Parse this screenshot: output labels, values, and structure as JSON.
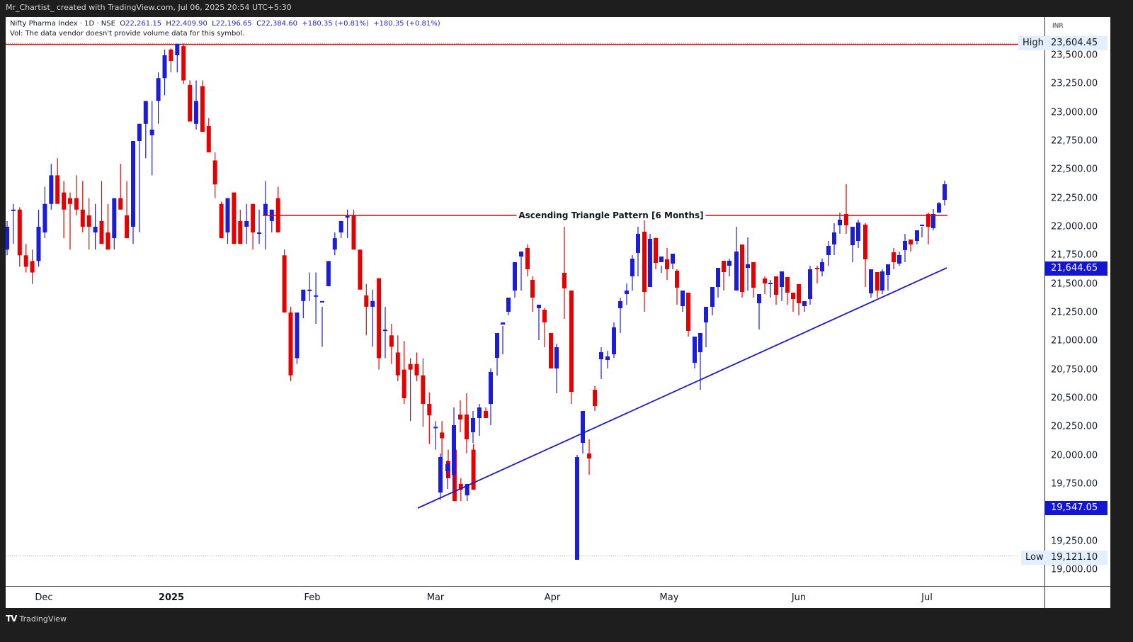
{
  "header": {
    "credit": "Mr_Chartist_ created with TradingView.com, Jul 06, 2025 20:54 UTC+5:30"
  },
  "legend": {
    "symbol": "Nifty Pharma Index · 1D · NSE",
    "open_label": "O",
    "open": "22,261.15",
    "high_label": "H",
    "high": "22,409.90",
    "low_label": "L",
    "low": "22,196.65",
    "close_label": "C",
    "close": "22,384.60",
    "change1": "+180.35 (+0.81%)",
    "change2": "+180.35 (+0.81%)",
    "vol_note": "Vol: The data vendor doesn't provide volume data for this symbol."
  },
  "price_axis": {
    "currency": "INR",
    "ticks": [
      "23,500.00",
      "23,250.00",
      "23,000.00",
      "22,750.00",
      "22,500.00",
      "22,250.00",
      "22,000.00",
      "21,750.00",
      "21,500.00",
      "21,250.00",
      "21,000.00",
      "20,750.00",
      "20,500.00",
      "20,250.00",
      "20,000.00",
      "19,750.00",
      "19,250.00",
      "19,000.00"
    ],
    "high_tag": "High",
    "high_value": "23,604.45",
    "low_tag": "Low",
    "low_value": "19,121.10",
    "marker1": "21,644.65",
    "marker2": "19,547.05"
  },
  "time_axis": {
    "labels": [
      "Dec",
      "2025",
      "Feb",
      "Mar",
      "Apr",
      "May",
      "Jun",
      "Jul"
    ]
  },
  "annotation": {
    "text": "Ascending Triangle Pattern [6 Months]"
  },
  "footer": {
    "brand": "TradingView",
    "logo": "TV"
  },
  "colors": {
    "up": "#1c1cdb",
    "down": "#e60000",
    "resistance": "#e60000",
    "trendline": "#1a1ad0"
  },
  "chart_data": {
    "type": "candlestick",
    "title": "Nifty Pharma Index · 1D · NSE",
    "xlabel": "",
    "ylabel": "INR",
    "ylim": [
      18850,
      23750
    ],
    "x_labels": [
      "Dec",
      "2025",
      "Feb",
      "Mar",
      "Apr",
      "May",
      "Jun",
      "Jul"
    ],
    "high": 23604.45,
    "low": 19121.1,
    "last": {
      "open": 22261.15,
      "high": 22409.9,
      "low": 22196.65,
      "close": 22384.6,
      "change": 180.35,
      "change_pct": 0.81
    },
    "annotations": [
      {
        "type": "hline",
        "label": "Ascending Triangle Pattern [6 Months]",
        "price": 22100,
        "from": "Jan 20",
        "to": "Jul 4"
      },
      {
        "type": "trendline",
        "from": {
          "date": "Feb 28",
          "price": 19547.05
        },
        "to": {
          "date": "Jul 4",
          "price": 21644.65
        }
      },
      {
        "type": "hline",
        "label": "High",
        "price": 23604.45
      },
      {
        "type": "hline",
        "label": "Low",
        "price": 19121.1
      }
    ],
    "candles": [
      [
        21800,
        22050,
        21750,
        22000
      ],
      [
        22150,
        22200,
        21850,
        22150
      ],
      [
        22150,
        22170,
        21650,
        21750
      ],
      [
        21750,
        21850,
        21600,
        21650
      ],
      [
        21700,
        21800,
        21500,
        21600
      ],
      [
        21700,
        22150,
        21650,
        22000
      ],
      [
        21950,
        22350,
        21900,
        22200
      ],
      [
        22200,
        22550,
        22150,
        22450
      ],
      [
        22450,
        22600,
        22350,
        22200
      ],
      [
        22300,
        22400,
        21900,
        22150
      ],
      [
        22250,
        22300,
        21800,
        22200
      ],
      [
        22250,
        22450,
        22100,
        22150
      ],
      [
        22150,
        22400,
        21950,
        22000
      ],
      [
        22100,
        22250,
        21800,
        22000
      ],
      [
        21950,
        22200,
        21800,
        22000
      ],
      [
        22050,
        22400,
        21950,
        21850
      ],
      [
        21950,
        22200,
        21850,
        21800
      ],
      [
        21900,
        22200,
        21800,
        22250
      ],
      [
        22250,
        22550,
        22150,
        22150
      ],
      [
        22100,
        22400,
        22050,
        21900
      ],
      [
        22000,
        22500,
        21850,
        22750
      ],
      [
        22750,
        22900,
        21950,
        22900
      ],
      [
        22900,
        23050,
        22600,
        23100
      ],
      [
        22800,
        23100,
        22450,
        22850
      ],
      [
        23100,
        23350,
        22900,
        23300
      ],
      [
        23300,
        23550,
        23150,
        23500
      ],
      [
        23550,
        23560,
        23350,
        23450
      ],
      [
        23500,
        23600,
        23350,
        23600
      ],
      [
        23580,
        23604,
        23250,
        23280
      ],
      [
        23240,
        23280,
        22950,
        22920
      ],
      [
        22900,
        23280,
        22850,
        23100
      ],
      [
        23230,
        23280,
        22850,
        22830
      ],
      [
        22880,
        22950,
        22750,
        22650
      ],
      [
        22580,
        22650,
        22250,
        22370
      ],
      [
        22200,
        22220,
        21900,
        21900
      ],
      [
        21950,
        22250,
        21850,
        22250
      ],
      [
        22300,
        22300,
        21850,
        21850
      ],
      [
        22050,
        22150,
        21900,
        21850
      ],
      [
        22000,
        22200,
        21850,
        22050
      ],
      [
        22200,
        22150,
        21800,
        21950
      ],
      [
        21950,
        22150,
        21850,
        21950
      ],
      [
        22100,
        22400,
        21800,
        22200
      ],
      [
        22050,
        22150,
        21950,
        22150
      ],
      [
        22250,
        22350,
        22000,
        21950
      ],
      [
        21750,
        21800,
        21250,
        21250
      ],
      [
        21250,
        21300,
        20650,
        20700
      ],
      [
        20850,
        21250,
        20800,
        21250
      ],
      [
        21350,
        21400,
        21200,
        21450
      ],
      [
        21450,
        21600,
        21350,
        21450
      ],
      [
        21400,
        21600,
        21150,
        21400
      ],
      [
        21350,
        21300,
        20950,
        21350
      ],
      [
        21480,
        21700,
        21500,
        21700
      ],
      [
        21800,
        21950,
        21750,
        21900
      ],
      [
        21950,
        22050,
        21900,
        22050
      ],
      [
        22080,
        22150,
        21900,
        22100
      ],
      [
        22100,
        22150,
        21900,
        21800
      ],
      [
        21800,
        21800,
        21450,
        21450
      ],
      [
        21400,
        21500,
        21050,
        21300
      ],
      [
        21300,
        21450,
        20950,
        21350
      ],
      [
        21550,
        21550,
        20750,
        20850
      ],
      [
        21100,
        21300,
        20850,
        21100
      ],
      [
        21050,
        21150,
        20800,
        20950
      ],
      [
        20900,
        21050,
        20650,
        20700
      ],
      [
        20750,
        21000,
        20450,
        20500
      ],
      [
        20800,
        20850,
        20300,
        20750
      ],
      [
        20800,
        20900,
        20650,
        20700
      ],
      [
        20700,
        20850,
        20250,
        20450
      ],
      [
        20450,
        20550,
        20100,
        20350
      ],
      [
        20250,
        20300,
        20050,
        20250
      ],
      [
        20200,
        20300,
        19900,
        20150
      ],
      [
        19950,
        20050,
        19850,
        19800
      ],
      [
        20050,
        20100,
        19600,
        19600
      ],
      [
        19750,
        19800,
        19600,
        19700
      ],
      [
        19650,
        19700,
        19600,
        19750
      ],
      [
        20050,
        20100,
        19700,
        19700
      ]
    ]
  }
}
